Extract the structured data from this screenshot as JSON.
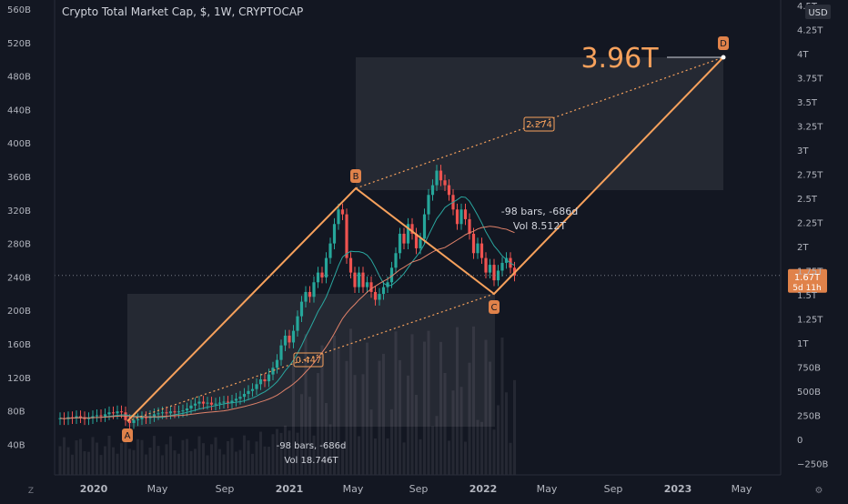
{
  "header": {
    "title": "Crypto Total Market Cap, $, 1W, CRYPTOCAP",
    "currency_button": "USD"
  },
  "colors": {
    "background": "#131722",
    "pattern": "#f7a15c",
    "label_bg": "#e0824a",
    "candle_up": "#26a69a",
    "candle_down": "#ef5350",
    "ma_fast": "#2aa7a0",
    "ma_slow": "#e0826a",
    "axis_text": "#b2b5be"
  },
  "chart_data": {
    "type": "candlestick",
    "title": "Crypto Total Market Cap, $, 1W, CRYPTOCAP",
    "left_axis": {
      "ticks": [
        "560B",
        "520B",
        "480B",
        "440B",
        "400B",
        "360B",
        "320B",
        "280B",
        "240B",
        "200B",
        "160B",
        "120B",
        "80B",
        "40B"
      ]
    },
    "right_axis": {
      "ticks": [
        "4.5T",
        "4.25T",
        "4T",
        "3.75T",
        "3.5T",
        "3.25T",
        "3T",
        "2.75T",
        "2.5T",
        "2.25T",
        "2T",
        "1.75T",
        "1.5T",
        "1.25T",
        "1T",
        "750B",
        "500B",
        "250B",
        "0",
        "−250B"
      ],
      "range": [
        -0.25,
        4.5
      ],
      "unit": "T"
    },
    "x_axis": {
      "ticks": [
        "2020",
        "May",
        "Sep",
        "2021",
        "May",
        "Sep",
        "2022",
        "May",
        "Sep",
        "2023",
        "May"
      ]
    },
    "price_label": {
      "value": "1.67T",
      "countdown": "5d 11h",
      "value_num": 1.67
    },
    "pattern_points": [
      {
        "label": "A",
        "date": "2020-03",
        "value": 0.15
      },
      {
        "label": "B",
        "date": "2021-05",
        "value": 2.5
      },
      {
        "label": "C",
        "date": "2022-01",
        "value": 1.45
      },
      {
        "label": "D",
        "date": "2023-04",
        "value": 3.96
      }
    ],
    "projection_label": "3.96T",
    "ratio_labels": [
      "2.274",
      "0.447"
    ],
    "range_top": {
      "bars": "-98 bars, -686d",
      "vol": "Vol 8.512T"
    },
    "range_bottom": {
      "bars": "-98 bars, -686d",
      "vol": "Vol 18.746T"
    },
    "ohlc": [
      {
        "o": 0.19,
        "c": 0.2
      },
      {
        "o": 0.2,
        "c": 0.19
      },
      {
        "o": 0.19,
        "c": 0.21
      },
      {
        "o": 0.21,
        "c": 0.2
      },
      {
        "o": 0.2,
        "c": 0.22
      },
      {
        "o": 0.22,
        "c": 0.21
      },
      {
        "o": 0.21,
        "c": 0.19
      },
      {
        "o": 0.19,
        "c": 0.2
      },
      {
        "o": 0.2,
        "c": 0.22
      },
      {
        "o": 0.22,
        "c": 0.23
      },
      {
        "o": 0.23,
        "c": 0.22
      },
      {
        "o": 0.22,
        "c": 0.24
      },
      {
        "o": 0.24,
        "c": 0.26
      },
      {
        "o": 0.26,
        "c": 0.25
      },
      {
        "o": 0.25,
        "c": 0.27
      },
      {
        "o": 0.27,
        "c": 0.26
      },
      {
        "o": 0.26,
        "c": 0.18
      },
      {
        "o": 0.18,
        "c": 0.15
      },
      {
        "o": 0.15,
        "c": 0.18
      },
      {
        "o": 0.18,
        "c": 0.19
      },
      {
        "o": 0.19,
        "c": 0.21
      },
      {
        "o": 0.21,
        "c": 0.2
      },
      {
        "o": 0.2,
        "c": 0.22
      },
      {
        "o": 0.22,
        "c": 0.24
      },
      {
        "o": 0.24,
        "c": 0.25
      },
      {
        "o": 0.25,
        "c": 0.26
      },
      {
        "o": 0.26,
        "c": 0.25
      },
      {
        "o": 0.25,
        "c": 0.27
      },
      {
        "o": 0.27,
        "c": 0.26
      },
      {
        "o": 0.26,
        "c": 0.27
      },
      {
        "o": 0.27,
        "c": 0.28
      },
      {
        "o": 0.28,
        "c": 0.3
      },
      {
        "o": 0.3,
        "c": 0.33
      },
      {
        "o": 0.33,
        "c": 0.35
      },
      {
        "o": 0.35,
        "c": 0.37
      },
      {
        "o": 0.37,
        "c": 0.35
      },
      {
        "o": 0.35,
        "c": 0.36
      },
      {
        "o": 0.36,
        "c": 0.34
      },
      {
        "o": 0.34,
        "c": 0.35
      },
      {
        "o": 0.35,
        "c": 0.36
      },
      {
        "o": 0.36,
        "c": 0.37
      },
      {
        "o": 0.37,
        "c": 0.36
      },
      {
        "o": 0.36,
        "c": 0.38
      },
      {
        "o": 0.38,
        "c": 0.4
      },
      {
        "o": 0.4,
        "c": 0.42
      },
      {
        "o": 0.42,
        "c": 0.45
      },
      {
        "o": 0.45,
        "c": 0.48
      },
      {
        "o": 0.48,
        "c": 0.5
      },
      {
        "o": 0.5,
        "c": 0.55
      },
      {
        "o": 0.55,
        "c": 0.6
      },
      {
        "o": 0.6,
        "c": 0.58
      },
      {
        "o": 0.58,
        "c": 0.65
      },
      {
        "o": 0.65,
        "c": 0.72
      },
      {
        "o": 0.72,
        "c": 0.8
      },
      {
        "o": 0.8,
        "c": 0.95
      },
      {
        "o": 0.95,
        "c": 1.05
      },
      {
        "o": 1.05,
        "c": 0.98
      },
      {
        "o": 0.98,
        "c": 1.1
      },
      {
        "o": 1.1,
        "c": 1.25
      },
      {
        "o": 1.25,
        "c": 1.4
      },
      {
        "o": 1.4,
        "c": 1.5
      },
      {
        "o": 1.5,
        "c": 1.45
      },
      {
        "o": 1.45,
        "c": 1.6
      },
      {
        "o": 1.6,
        "c": 1.7
      },
      {
        "o": 1.7,
        "c": 1.65
      },
      {
        "o": 1.65,
        "c": 1.85
      },
      {
        "o": 1.85,
        "c": 2.0
      },
      {
        "o": 2.0,
        "c": 2.2
      },
      {
        "o": 2.2,
        "c": 2.35
      },
      {
        "o": 2.35,
        "c": 2.3
      },
      {
        "o": 2.3,
        "c": 1.85
      },
      {
        "o": 1.85,
        "c": 1.7
      },
      {
        "o": 1.7,
        "c": 1.55
      },
      {
        "o": 1.55,
        "c": 1.7
      },
      {
        "o": 1.7,
        "c": 1.55
      },
      {
        "o": 1.55,
        "c": 1.6
      },
      {
        "o": 1.6,
        "c": 1.5
      },
      {
        "o": 1.5,
        "c": 1.42
      },
      {
        "o": 1.42,
        "c": 1.48
      },
      {
        "o": 1.48,
        "c": 1.55
      },
      {
        "o": 1.55,
        "c": 1.6
      },
      {
        "o": 1.6,
        "c": 1.75
      },
      {
        "o": 1.75,
        "c": 1.9
      },
      {
        "o": 1.9,
        "c": 2.1
      },
      {
        "o": 2.1,
        "c": 2.0
      },
      {
        "o": 2.0,
        "c": 2.2
      },
      {
        "o": 2.2,
        "c": 2.1
      },
      {
        "o": 2.1,
        "c": 1.95
      },
      {
        "o": 1.95,
        "c": 2.05
      },
      {
        "o": 2.05,
        "c": 2.3
      },
      {
        "o": 2.3,
        "c": 2.5
      },
      {
        "o": 2.5,
        "c": 2.6
      },
      {
        "o": 2.6,
        "c": 2.75
      },
      {
        "o": 2.75,
        "c": 2.65
      },
      {
        "o": 2.65,
        "c": 2.6
      },
      {
        "o": 2.6,
        "c": 2.5
      },
      {
        "o": 2.5,
        "c": 2.35
      },
      {
        "o": 2.35,
        "c": 2.2
      },
      {
        "o": 2.2,
        "c": 2.35
      },
      {
        "o": 2.35,
        "c": 2.25
      },
      {
        "o": 2.25,
        "c": 2.1
      },
      {
        "o": 2.1,
        "c": 1.9
      },
      {
        "o": 1.9,
        "c": 2.0
      },
      {
        "o": 2.0,
        "c": 1.85
      },
      {
        "o": 1.85,
        "c": 1.7
      },
      {
        "o": 1.7,
        "c": 1.78
      },
      {
        "o": 1.78,
        "c": 1.62
      },
      {
        "o": 1.62,
        "c": 1.72
      },
      {
        "o": 1.72,
        "c": 1.8
      },
      {
        "o": 1.8,
        "c": 1.85
      },
      {
        "o": 1.85,
        "c": 1.75
      },
      {
        "o": 1.75,
        "c": 1.67
      }
    ]
  }
}
